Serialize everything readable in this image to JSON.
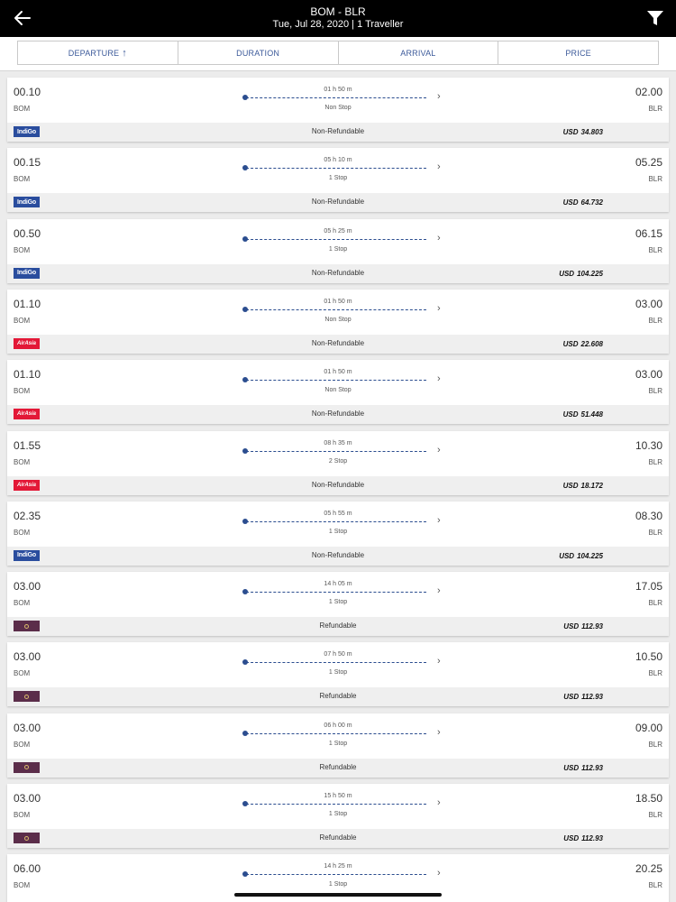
{
  "header": {
    "route": "BOM - BLR",
    "subtitle": "Tue, Jul 28, 2020 | 1 Traveller",
    "back_icon": "back-arrow-icon",
    "filter_icon": "filter-icon"
  },
  "sort_tabs": [
    {
      "label": "DEPARTURE",
      "active": true,
      "arrow": "↑"
    },
    {
      "label": "DURATION",
      "active": false
    },
    {
      "label": "ARRIVAL",
      "active": false
    },
    {
      "label": "PRICE",
      "active": false
    }
  ],
  "colors": {
    "accent": "#2b4d8f",
    "header_bg": "#000000",
    "indigo": "#2a4d9e",
    "airasia": "#e31837",
    "vistara": "#5b2d4a"
  },
  "flights": [
    {
      "dep_time": "00.10",
      "dep_code": "BOM",
      "arr_time": "02.00",
      "arr_code": "BLR",
      "duration": "01 h 50 m",
      "stops": "Non Stop",
      "airline": "indigo",
      "airline_logo_text": "IndiGo",
      "refund": "Non-Refundable",
      "currency": "USD",
      "price": "34.803"
    },
    {
      "dep_time": "00.15",
      "dep_code": "BOM",
      "arr_time": "05.25",
      "arr_code": "BLR",
      "duration": "05 h 10 m",
      "stops": "1 Stop",
      "airline": "indigo",
      "airline_logo_text": "IndiGo",
      "refund": "Non-Refundable",
      "currency": "USD",
      "price": "64.732"
    },
    {
      "dep_time": "00.50",
      "dep_code": "BOM",
      "arr_time": "06.15",
      "arr_code": "BLR",
      "duration": "05 h 25 m",
      "stops": "1 Stop",
      "airline": "indigo",
      "airline_logo_text": "IndiGo",
      "refund": "Non-Refundable",
      "currency": "USD",
      "price": "104.225"
    },
    {
      "dep_time": "01.10",
      "dep_code": "BOM",
      "arr_time": "03.00",
      "arr_code": "BLR",
      "duration": "01 h 50 m",
      "stops": "Non Stop",
      "airline": "airasia",
      "airline_logo_text": "AirAsia",
      "refund": "Non-Refundable",
      "currency": "USD",
      "price": "22.608"
    },
    {
      "dep_time": "01.10",
      "dep_code": "BOM",
      "arr_time": "03.00",
      "arr_code": "BLR",
      "duration": "01 h 50 m",
      "stops": "Non Stop",
      "airline": "airasia",
      "airline_logo_text": "AirAsia",
      "refund": "Non-Refundable",
      "currency": "USD",
      "price": "51.448"
    },
    {
      "dep_time": "01.55",
      "dep_code": "BOM",
      "arr_time": "10.30",
      "arr_code": "BLR",
      "duration": "08 h 35 m",
      "stops": "2 Stop",
      "airline": "airasia",
      "airline_logo_text": "AirAsia",
      "refund": "Non-Refundable",
      "currency": "USD",
      "price": "18.172"
    },
    {
      "dep_time": "02.35",
      "dep_code": "BOM",
      "arr_time": "08.30",
      "arr_code": "BLR",
      "duration": "05 h 55 m",
      "stops": "1 Stop",
      "airline": "indigo",
      "airline_logo_text": "IndiGo",
      "refund": "Non-Refundable",
      "currency": "USD",
      "price": "104.225"
    },
    {
      "dep_time": "03.00",
      "dep_code": "BOM",
      "arr_time": "17.05",
      "arr_code": "BLR",
      "duration": "14 h 05 m",
      "stops": "1 Stop",
      "airline": "vistara",
      "airline_logo_text": "",
      "refund": "Refundable",
      "currency": "USD",
      "price": "112.93"
    },
    {
      "dep_time": "03.00",
      "dep_code": "BOM",
      "arr_time": "10.50",
      "arr_code": "BLR",
      "duration": "07 h 50 m",
      "stops": "1 Stop",
      "airline": "vistara",
      "airline_logo_text": "",
      "refund": "Refundable",
      "currency": "USD",
      "price": "112.93"
    },
    {
      "dep_time": "03.00",
      "dep_code": "BOM",
      "arr_time": "09.00",
      "arr_code": "BLR",
      "duration": "06 h 00 m",
      "stops": "1 Stop",
      "airline": "vistara",
      "airline_logo_text": "",
      "refund": "Refundable",
      "currency": "USD",
      "price": "112.93"
    },
    {
      "dep_time": "03.00",
      "dep_code": "BOM",
      "arr_time": "18.50",
      "arr_code": "BLR",
      "duration": "15 h 50 m",
      "stops": "1 Stop",
      "airline": "vistara",
      "airline_logo_text": "",
      "refund": "Refundable",
      "currency": "USD",
      "price": "112.93"
    },
    {
      "dep_time": "06.00",
      "dep_code": "BOM",
      "arr_time": "20.25",
      "arr_code": "BLR",
      "duration": "14 h 25 m",
      "stops": "1 Stop",
      "airline": "",
      "airline_logo_text": "",
      "refund": "",
      "currency": "",
      "price": ""
    }
  ]
}
